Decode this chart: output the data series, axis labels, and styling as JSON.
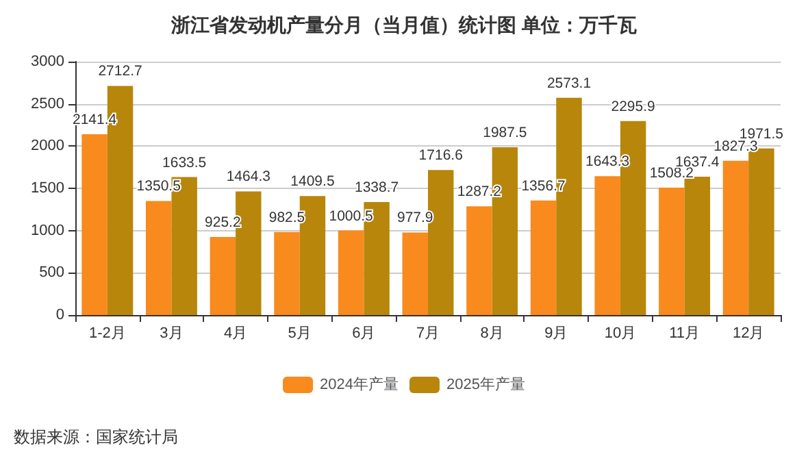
{
  "chart_data": {
    "type": "bar",
    "title": "浙江省发动机产量分月（当月值）统计图 单位：万千瓦",
    "categories": [
      "1-2月",
      "3月",
      "4月",
      "5月",
      "6月",
      "7月",
      "8月",
      "9月",
      "10月",
      "11月",
      "12月"
    ],
    "series": [
      {
        "name": "2024年产量",
        "color": "#f98a1d",
        "values": [
          2141.4,
          1350.5,
          925.2,
          982.5,
          1000.5,
          977.9,
          1287.2,
          1356.7,
          1643.3,
          1508.2,
          1827.3
        ]
      },
      {
        "name": "2025年产量",
        "color": "#b8860b",
        "values": [
          2712.7,
          1633.5,
          1464.3,
          1409.5,
          1338.7,
          1716.6,
          1987.5,
          2573.1,
          2295.9,
          1637.4,
          1971.5
        ]
      }
    ],
    "ylim": [
      0,
      3000
    ],
    "yticks": [
      0,
      500,
      1000,
      1500,
      2000,
      2500,
      3000
    ],
    "grid": "y",
    "legend": "bottom",
    "data_labels": true,
    "annotations": [
      "数据来源：国家统计局"
    ]
  }
}
